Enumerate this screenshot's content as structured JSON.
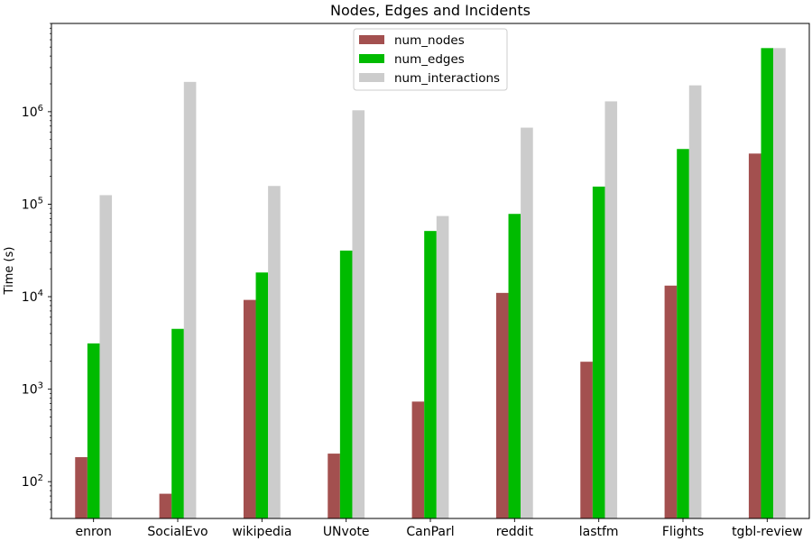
{
  "chart_data": {
    "type": "bar",
    "title": "Nodes, Edges and Incidents",
    "xlabel": "",
    "ylabel": "Time (s)",
    "yscale": "log",
    "ylim": [
      40,
      9000000
    ],
    "yticks": [
      {
        "value": 100,
        "base": "10",
        "exp": "2"
      },
      {
        "value": 1000,
        "base": "10",
        "exp": "3"
      },
      {
        "value": 10000,
        "base": "10",
        "exp": "4"
      },
      {
        "value": 100000,
        "base": "10",
        "exp": "5"
      },
      {
        "value": 1000000,
        "base": "10",
        "exp": "6"
      }
    ],
    "categories": [
      "enron",
      "SocialEvo",
      "wikipedia",
      "UNvote",
      "CanParl",
      "reddit",
      "lastfm",
      "Flights",
      "tgbl-review"
    ],
    "series": [
      {
        "name": "num_nodes",
        "color": "#a3504f",
        "values": [
          184,
          74,
          9227,
          201,
          734,
          10984,
          1980,
          13169,
          352637
        ]
      },
      {
        "name": "num_edges",
        "color": "#00bb00",
        "values": [
          3125,
          4486,
          18257,
          31516,
          51331,
          78516,
          154993,
          395072,
          4873540
        ]
      },
      {
        "name": "num_interactions",
        "color": "#cccccc",
        "values": [
          125235,
          2099519,
          157474,
          1035742,
          74478,
          672447,
          1293103,
          1927145,
          4873540
        ]
      }
    ],
    "legend": {
      "position": "upper-center"
    },
    "grid": false
  }
}
